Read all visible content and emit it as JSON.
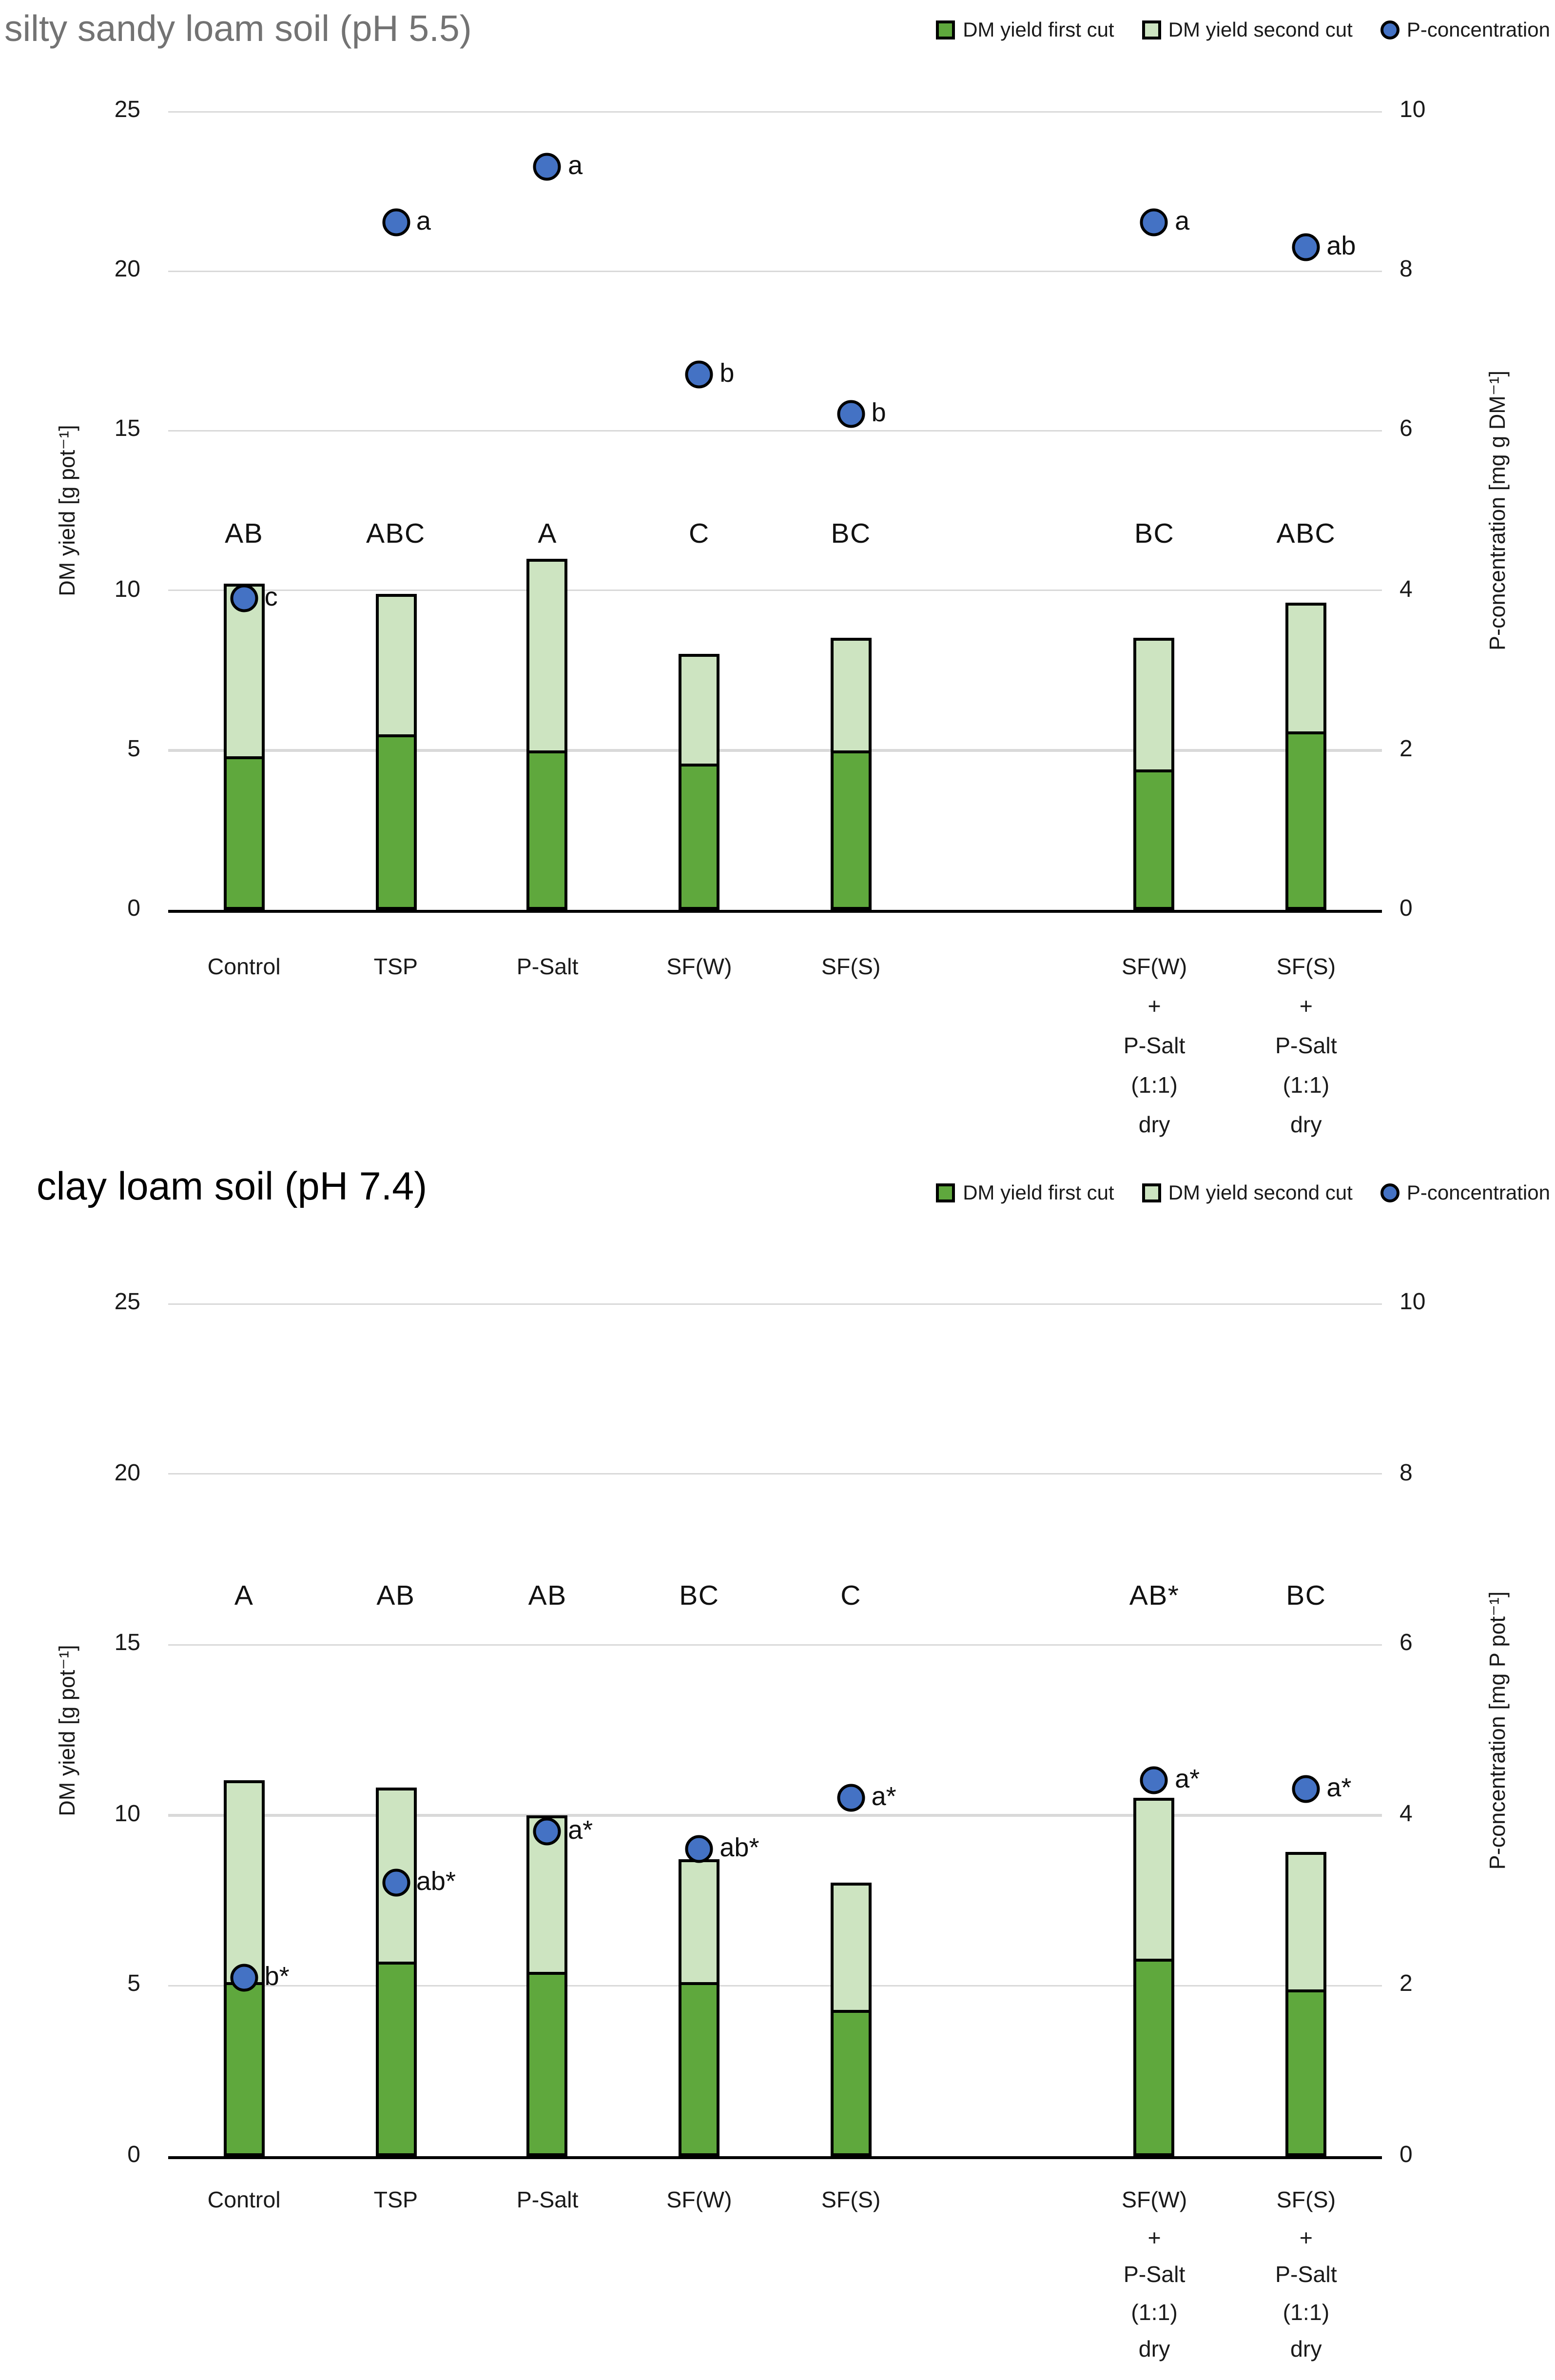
{
  "page": {
    "background": "#ffffff"
  },
  "colors": {
    "first_cut_green": "#5FA83D",
    "second_cut_green": "#CDE4C1",
    "dot_blue": "#4472C4",
    "gridline": "#D9D9D9",
    "axis_line": "#000000",
    "bar_border": "#000000",
    "text": "#1a1a1a"
  },
  "chart_data": [
    {
      "type": "bar",
      "subtype": "stacked-bar-with-scatter",
      "title": "silty sandy loam soil (pH 5.5)",
      "title_color": "#737373",
      "legend": [
        {
          "label": "DM yield first cut",
          "marker": "square",
          "color": "#5FA83D"
        },
        {
          "label": "DM yield second cut",
          "marker": "square",
          "color": "#CDE4C1"
        },
        {
          "label": "P-concentration",
          "marker": "circle",
          "color": "#4472C4"
        }
      ],
      "left_axis": {
        "label": "DM yield [g pot⁻¹]",
        "min": 0,
        "max": 25,
        "ticks": [
          0,
          5,
          10,
          15,
          20,
          25
        ]
      },
      "right_axis": {
        "label": "P-concentration [mg g DM⁻¹]",
        "min": 0,
        "max": 10,
        "ticks": [
          0,
          2,
          4,
          6,
          8,
          10
        ]
      },
      "gridline_values": [
        5,
        10,
        15,
        20,
        25
      ],
      "slot_count": 8,
      "letter_row_value": 11.7,
      "series_names": {
        "bar1": "DM yield first cut",
        "bar2": "DM yield second cut",
        "points": "P-concentration"
      },
      "categories": [
        {
          "label_lines": [
            "Control"
          ],
          "slot": 0,
          "first_cut": 4.7,
          "second_cut": 5.5,
          "group_letter": "AB",
          "p_value": 3.9,
          "p_label": "c"
        },
        {
          "label_lines": [
            "TSP"
          ],
          "slot": 1,
          "first_cut": 5.4,
          "second_cut": 4.5,
          "group_letter": "ABC",
          "p_value": 8.6,
          "p_label": "a"
        },
        {
          "label_lines": [
            "P-Salt"
          ],
          "slot": 2,
          "first_cut": 4.9,
          "second_cut": 6.1,
          "group_letter": "A",
          "p_value": 9.3,
          "p_label": "a"
        },
        {
          "label_lines": [
            "SF(W)"
          ],
          "slot": 3,
          "first_cut": 4.5,
          "second_cut": 3.5,
          "group_letter": "C",
          "p_value": 6.7,
          "p_label": "b"
        },
        {
          "label_lines": [
            "SF(S)"
          ],
          "slot": 4,
          "first_cut": 4.9,
          "second_cut": 3.6,
          "group_letter": "BC",
          "p_value": 6.2,
          "p_label": "b"
        },
        {
          "label_lines": [
            "SF(W)",
            "+",
            "P-Salt",
            "(1:1)",
            "dry"
          ],
          "slot": 6,
          "first_cut": 4.3,
          "second_cut": 4.2,
          "group_letter": "BC",
          "p_value": 8.6,
          "p_label": "a"
        },
        {
          "label_lines": [
            "SF(S)",
            "+",
            "P-Salt",
            "(1:1)",
            "dry"
          ],
          "slot": 7,
          "first_cut": 5.5,
          "second_cut": 4.1,
          "group_letter": "ABC",
          "p_value": 8.3,
          "p_label": "ab"
        }
      ]
    },
    {
      "type": "bar",
      "subtype": "stacked-bar-with-scatter",
      "title": "clay loam soil (pH 7.4)",
      "title_color": "#000000",
      "legend": [
        {
          "label": "DM yield first cut",
          "marker": "square",
          "color": "#5FA83D"
        },
        {
          "label": "DM yield second cut",
          "marker": "square",
          "color": "#CDE4C1"
        },
        {
          "label": "P-concentration",
          "marker": "circle",
          "color": "#4472C4"
        }
      ],
      "left_axis": {
        "label": "DM yield [g pot⁻¹]",
        "min": 0,
        "max": 25,
        "ticks": [
          0,
          5,
          10,
          15,
          20,
          25
        ]
      },
      "right_axis": {
        "label": "P-concentration [mg P pot⁻¹]",
        "min": 0,
        "max": 10,
        "ticks": [
          0,
          2,
          4,
          6,
          8,
          10
        ]
      },
      "gridline_values": [
        5,
        10,
        15,
        20,
        25
      ],
      "slot_count": 8,
      "letter_row_value": 16.4,
      "series_names": {
        "bar1": "DM yield first cut",
        "bar2": "DM yield second cut",
        "points": "P-concentration"
      },
      "categories": [
        {
          "label_lines": [
            "Control"
          ],
          "slot": 0,
          "first_cut": 5.0,
          "second_cut": 6.0,
          "group_letter": "A",
          "p_value": 2.1,
          "p_label": "b*"
        },
        {
          "label_lines": [
            "TSP"
          ],
          "slot": 1,
          "first_cut": 5.6,
          "second_cut": 5.2,
          "group_letter": "AB",
          "p_value": 3.2,
          "p_label": "ab*"
        },
        {
          "label_lines": [
            "P-Salt"
          ],
          "slot": 2,
          "first_cut": 5.3,
          "second_cut": 4.7,
          "group_letter": "AB",
          "p_value": 3.8,
          "p_label": "a*"
        },
        {
          "label_lines": [
            "SF(W)"
          ],
          "slot": 3,
          "first_cut": 5.0,
          "second_cut": 3.7,
          "group_letter": "BC",
          "p_value": 3.6,
          "p_label": "ab*"
        },
        {
          "label_lines": [
            "SF(S)"
          ],
          "slot": 4,
          "first_cut": 4.2,
          "second_cut": 3.8,
          "group_letter": "C",
          "p_value": 4.2,
          "p_label": "a*"
        },
        {
          "label_lines": [
            "SF(W)",
            "+",
            "P-Salt",
            "(1:1)",
            "dry"
          ],
          "slot": 6,
          "first_cut": 5.7,
          "second_cut": 4.8,
          "group_letter": "AB*",
          "p_value": 4.4,
          "p_label": "a*"
        },
        {
          "label_lines": [
            "SF(S)",
            "+",
            "P-Salt",
            "(1:1)",
            "dry"
          ],
          "slot": 7,
          "first_cut": 4.8,
          "second_cut": 4.1,
          "group_letter": "BC",
          "p_value": 4.3,
          "p_label": "a*"
        }
      ]
    }
  ]
}
